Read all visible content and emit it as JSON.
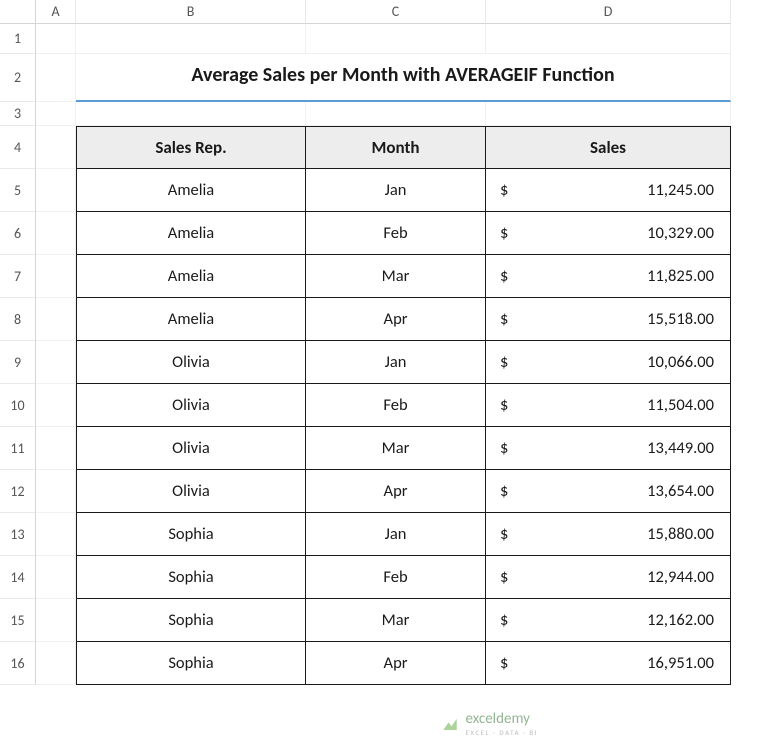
{
  "columns": [
    "A",
    "B",
    "C",
    "D"
  ],
  "rows": [
    "1",
    "2",
    "3",
    "4",
    "5",
    "6",
    "7",
    "8",
    "9",
    "10",
    "11",
    "12",
    "13",
    "14",
    "15",
    "16"
  ],
  "title": "Average Sales per Month with AVERAGEIF Function",
  "title_underline_color": "#5b9bd5",
  "table": {
    "headers": [
      "Sales Rep.",
      "Month",
      "Sales"
    ],
    "header_bg": "#ededed",
    "border_color": "#1a1a1a",
    "currency_symbol": "$",
    "rows": [
      {
        "rep": "Amelia",
        "month": "Jan",
        "sales": "11,245.00"
      },
      {
        "rep": "Amelia",
        "month": "Feb",
        "sales": "10,329.00"
      },
      {
        "rep": "Amelia",
        "month": "Mar",
        "sales": "11,825.00"
      },
      {
        "rep": "Amelia",
        "month": "Apr",
        "sales": "15,518.00"
      },
      {
        "rep": "Olivia",
        "month": "Jan",
        "sales": "10,066.00"
      },
      {
        "rep": "Olivia",
        "month": "Feb",
        "sales": "11,504.00"
      },
      {
        "rep": "Olivia",
        "month": "Mar",
        "sales": "13,449.00"
      },
      {
        "rep": "Olivia",
        "month": "Apr",
        "sales": "13,654.00"
      },
      {
        "rep": "Sophia",
        "month": "Jan",
        "sales": "15,880.00"
      },
      {
        "rep": "Sophia",
        "month": "Feb",
        "sales": "12,944.00"
      },
      {
        "rep": "Sophia",
        "month": "Mar",
        "sales": "12,162.00"
      },
      {
        "rep": "Sophia",
        "month": "Apr",
        "sales": "16,951.00"
      }
    ]
  },
  "watermark": {
    "brand": "exceldemy",
    "sub": "EXCEL · DATA · BI",
    "brand_color": "#3a7a3a"
  }
}
